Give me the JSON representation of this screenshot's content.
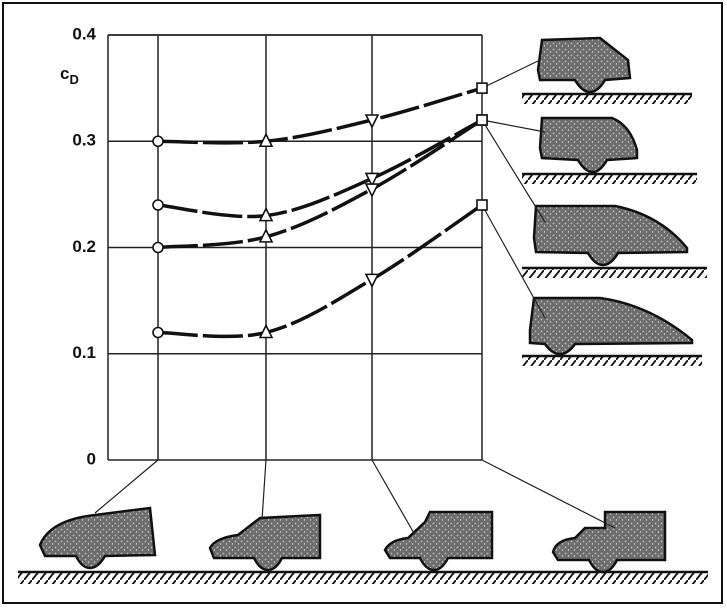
{
  "chart_data": {
    "type": "line",
    "y_label": "c",
    "y_label_subscript": "D",
    "categories": [
      null,
      null,
      null,
      null
    ],
    "series": [
      {
        "color": "#111111",
        "values": [
          0.3,
          0.3,
          0.32,
          0.35
        ]
      },
      {
        "color": "#111111",
        "values": [
          0.24,
          0.23,
          0.265,
          0.32
        ]
      },
      {
        "color": "#111111",
        "values": [
          0.2,
          0.21,
          0.255,
          0.32
        ]
      },
      {
        "color": "#111111",
        "values": [
          0.12,
          0.12,
          0.17,
          0.24
        ]
      }
    ],
    "ylim": [
      0,
      0.4
    ],
    "yticks": [
      0,
      0.1,
      0.2,
      0.3,
      0.4
    ],
    "grid": true
  }
}
